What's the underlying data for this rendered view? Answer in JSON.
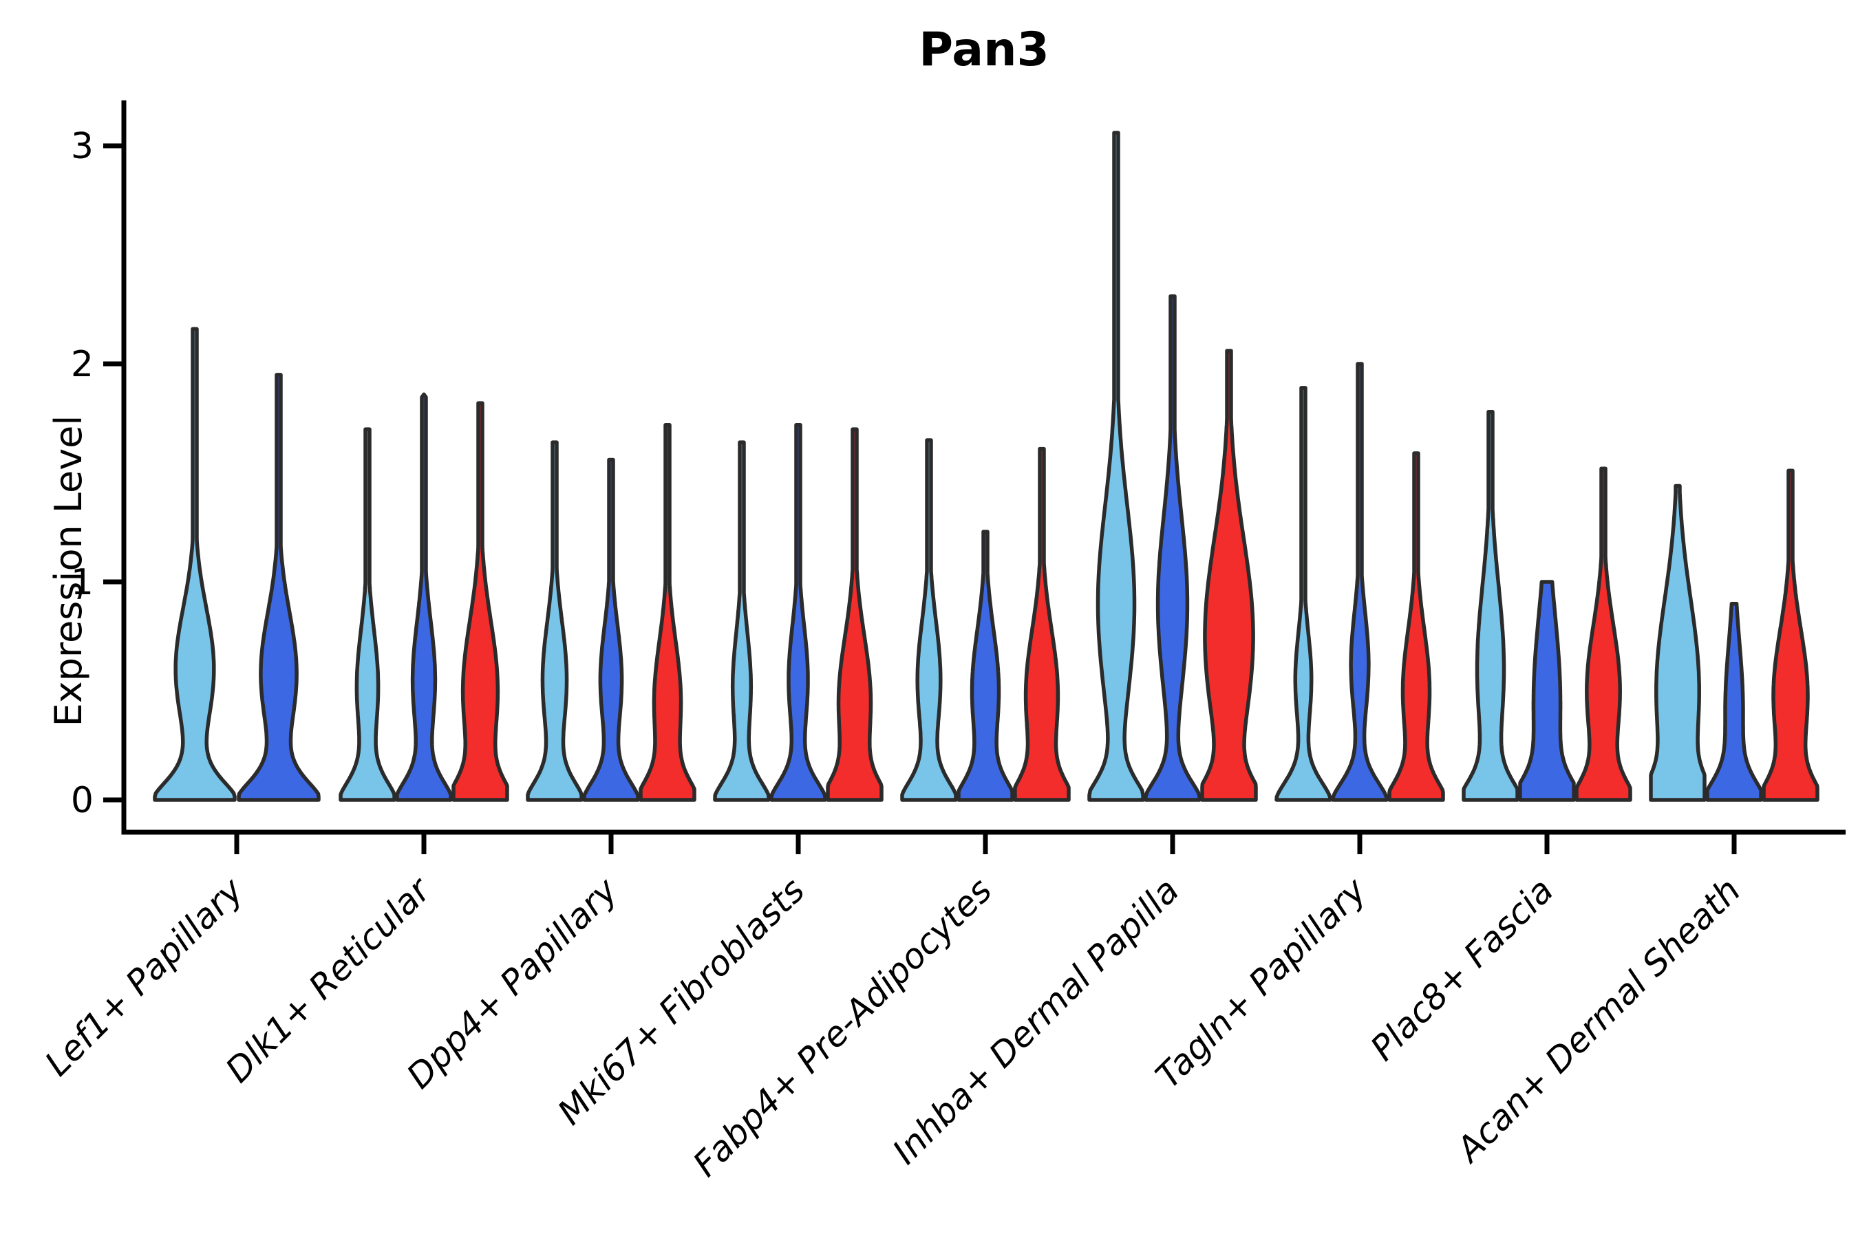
{
  "page": {
    "background_color": "#FFFFFF"
  },
  "chart_data": {
    "type": "violin",
    "title": "Pan3",
    "ylabel": "Expression Level",
    "xlabel": "",
    "ylim": [
      0,
      3.2
    ],
    "yticks": [
      0,
      1,
      2,
      3
    ],
    "y_tick_labels": [
      "0",
      "1",
      "2",
      "3"
    ],
    "grid": false,
    "legend_position": "none",
    "axis_color": "#000000",
    "outline_color": "#2B2B2B",
    "series_colors": [
      "#79C4E9",
      "#3D68E4",
      "#F32C2C"
    ],
    "series_names": [
      "violin-skyblue",
      "violin-royalblue",
      "violin-red"
    ],
    "categories": [
      "Lef1+ Papillary",
      "Dlk1+ Reticular",
      "Dpp4+ Papillary",
      "Mki67+ Fibroblasts",
      "Fabp4+ Pre-Adipocytes",
      "Inhba+ Dermal Papilla",
      "Tagln+ Papillary",
      "Plac8+ Fascia",
      "Acan+ Dermal Sheath"
    ],
    "groups": [
      {
        "category": "Lef1+ Papillary",
        "violins": [
          {
            "color_index": 0,
            "max": 2.16,
            "bulge_center": 0.6,
            "bulge_sigma": 0.28,
            "bulge_amp": 0.48
          },
          {
            "color_index": 1,
            "max": 1.95,
            "bulge_center": 0.58,
            "bulge_sigma": 0.28,
            "bulge_amp": 0.45
          }
        ]
      },
      {
        "category": "Dlk1+ Reticular",
        "violins": [
          {
            "color_index": 0,
            "max": 1.7,
            "bulge_center": 0.52,
            "bulge_sigma": 0.26,
            "bulge_amp": 0.4
          },
          {
            "color_index": 1,
            "max": 1.86,
            "bulge_center": 0.55,
            "bulge_sigma": 0.27,
            "bulge_amp": 0.42
          },
          {
            "color_index": 2,
            "max": 1.82,
            "bulge_center": 0.5,
            "bulge_sigma": 0.32,
            "bulge_amp": 0.65
          }
        ]
      },
      {
        "category": "Dpp4+ Papillary",
        "violins": [
          {
            "color_index": 0,
            "max": 1.64,
            "bulge_center": 0.55,
            "bulge_sigma": 0.27,
            "bulge_amp": 0.45
          },
          {
            "color_index": 1,
            "max": 1.56,
            "bulge_center": 0.55,
            "bulge_sigma": 0.25,
            "bulge_amp": 0.4
          },
          {
            "color_index": 2,
            "max": 1.72,
            "bulge_center": 0.45,
            "bulge_sigma": 0.28,
            "bulge_amp": 0.5
          }
        ]
      },
      {
        "category": "Mki67+ Fibroblasts",
        "violins": [
          {
            "color_index": 0,
            "max": 1.64,
            "bulge_center": 0.52,
            "bulge_sigma": 0.25,
            "bulge_amp": 0.34
          },
          {
            "color_index": 1,
            "max": 1.72,
            "bulge_center": 0.55,
            "bulge_sigma": 0.25,
            "bulge_amp": 0.36
          },
          {
            "color_index": 2,
            "max": 1.7,
            "bulge_center": 0.45,
            "bulge_sigma": 0.3,
            "bulge_amp": 0.6
          }
        ]
      },
      {
        "category": "Fabp4+ Pre-Adipocytes",
        "violins": [
          {
            "color_index": 0,
            "max": 1.65,
            "bulge_center": 0.55,
            "bulge_sigma": 0.27,
            "bulge_amp": 0.43
          },
          {
            "color_index": 1,
            "max": 1.23,
            "bulge_center": 0.5,
            "bulge_sigma": 0.28,
            "bulge_amp": 0.5
          },
          {
            "color_index": 2,
            "max": 1.61,
            "bulge_center": 0.48,
            "bulge_sigma": 0.3,
            "bulge_amp": 0.6
          }
        ]
      },
      {
        "category": "Inhba+ Dermal Papilla",
        "violins": [
          {
            "color_index": 0,
            "max": 3.06,
            "bulge_center": 0.9,
            "bulge_sigma": 0.45,
            "bulge_amp": 0.68
          },
          {
            "color_index": 1,
            "max": 2.31,
            "bulge_center": 0.9,
            "bulge_sigma": 0.4,
            "bulge_amp": 0.55
          },
          {
            "color_index": 2,
            "max": 2.06,
            "bulge_center": 0.75,
            "bulge_sigma": 0.45,
            "bulge_amp": 0.9
          }
        ]
      },
      {
        "category": "Tagln+ Papillary",
        "violins": [
          {
            "color_index": 0,
            "max": 1.89,
            "bulge_center": 0.55,
            "bulge_sigma": 0.22,
            "bulge_amp": 0.3
          },
          {
            "color_index": 1,
            "max": 2.0,
            "bulge_center": 0.62,
            "bulge_sigma": 0.24,
            "bulge_amp": 0.33
          },
          {
            "color_index": 2,
            "max": 1.59,
            "bulge_center": 0.5,
            "bulge_sigma": 0.28,
            "bulge_amp": 0.5
          }
        ]
      },
      {
        "category": "Plac8+ Fascia",
        "violins": [
          {
            "color_index": 0,
            "max": 1.78,
            "bulge_center": 0.6,
            "bulge_sigma": 0.38,
            "bulge_amp": 0.5
          },
          {
            "color_index": 1,
            "max": 1.0,
            "bulge_center": 0.45,
            "bulge_sigma": 0.4,
            "bulge_amp": 0.5
          },
          {
            "color_index": 2,
            "max": 1.52,
            "bulge_center": 0.5,
            "bulge_sigma": 0.3,
            "bulge_amp": 0.62
          }
        ]
      },
      {
        "category": "Acan+ Dermal Sheath",
        "violins": [
          {
            "color_index": 0,
            "max": 1.44,
            "bulge_center": 0.5,
            "bulge_sigma": 0.42,
            "bulge_amp": 0.8
          },
          {
            "color_index": 1,
            "max": 0.9,
            "bulge_center": 0.42,
            "bulge_sigma": 0.3,
            "bulge_amp": 0.33
          },
          {
            "color_index": 2,
            "max": 1.51,
            "bulge_center": 0.48,
            "bulge_sigma": 0.3,
            "bulge_amp": 0.64
          }
        ]
      }
    ]
  }
}
